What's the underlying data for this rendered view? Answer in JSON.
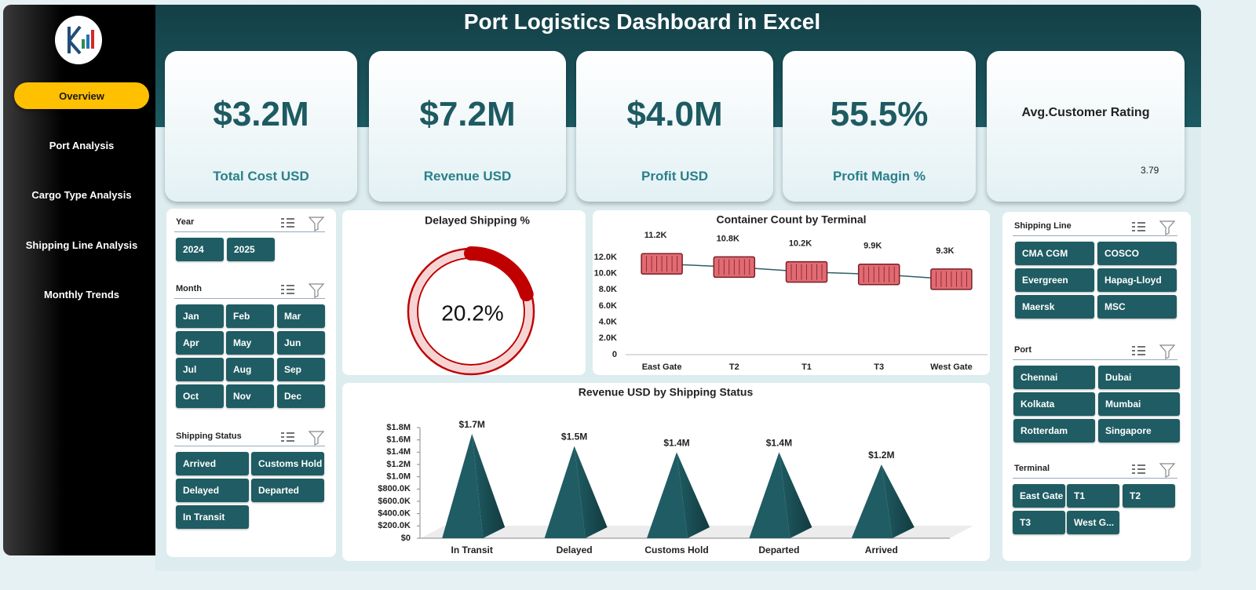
{
  "header": {
    "title": "Port Logistics Dashboard in Excel"
  },
  "nav": [
    "Overview",
    "Port Analysis",
    "Cargo Type Analysis",
    "Shipping Line  Analysis",
    "Monthly Trends"
  ],
  "kpis": [
    {
      "value": "$3.2M",
      "label": "Total Cost USD"
    },
    {
      "value": "$7.2M",
      "label": "Revenue USD"
    },
    {
      "value": "$4.0M",
      "label": "Profit USD"
    },
    {
      "value": "55.5%",
      "label": "Profit Magin %"
    }
  ],
  "rating": {
    "label": "Avg.Customer Rating",
    "value": 3.79
  },
  "left_slicers": [
    {
      "title": "Year",
      "items": [
        "2024",
        "2025"
      ]
    },
    {
      "title": "Month",
      "items": [
        "Jan",
        "Feb",
        "Mar",
        "Apr",
        "May",
        "Jun",
        "Jul",
        "Aug",
        "Sep",
        "Oct",
        "Nov",
        "Dec"
      ]
    },
    {
      "title": "Shipping Status",
      "items": [
        "Arrived",
        "Customs Hold",
        "Delayed",
        "Departed",
        "In Transit"
      ]
    }
  ],
  "right_slicers": [
    {
      "title": "Shipping Line",
      "items": [
        "CMA CGM",
        "COSCO",
        "Evergreen",
        "Hapag-Lloyd",
        "Maersk",
        "MSC"
      ]
    },
    {
      "title": "Port",
      "items": [
        "Chennai",
        "Dubai",
        "Kolkata",
        "Mumbai",
        "Rotterdam",
        "Singapore"
      ]
    },
    {
      "title": "Terminal",
      "items": [
        "East Gate",
        "T1",
        "T2",
        "T3",
        "West G..."
      ]
    }
  ],
  "chart_data": [
    {
      "type": "donut",
      "title": "Delayed  Shipping %",
      "values": [
        20.2
      ],
      "value_labels": [
        "20.2%"
      ],
      "color": "#c00000"
    },
    {
      "type": "line",
      "title": "Container Count by Terminal",
      "categories": [
        "East Gate",
        "T2",
        "T1",
        "T3",
        "West Gate"
      ],
      "values": [
        11200,
        10800,
        10200,
        9900,
        9300
      ],
      "value_labels": [
        "11.2K",
        "10.8K",
        "10.2K",
        "9.9K",
        "9.3K"
      ],
      "ylim": [
        0,
        12000
      ],
      "yticks": [
        0,
        {
          "value": 2000,
          "label": "2.0K"
        },
        {
          "value": 4000,
          "label": "4.0K"
        },
        {
          "value": 6000,
          "label": "6.0K"
        },
        {
          "value": 8000,
          "label": "8.0K"
        },
        {
          "value": 10000,
          "label": "10.0K"
        },
        {
          "value": 12000,
          "label": "12.0K"
        }
      ],
      "color": "#e26b73"
    },
    {
      "type": "pyramid",
      "title": "Revenue USD by Shipping Status",
      "categories": [
        "In Transit",
        "Delayed",
        "Customs Hold",
        "Departed",
        "Arrived"
      ],
      "values": [
        1700000,
        1500000,
        1400000,
        1400000,
        1200000
      ],
      "value_labels": [
        "$1.7M",
        "$1.5M",
        "$1.4M",
        "$1.4M",
        "$1.2M"
      ],
      "ylim": [
        0,
        1800000
      ],
      "yticks": [
        {
          "value": 0,
          "label": "$0"
        },
        {
          "value": 200000,
          "label": "$200.0K"
        },
        {
          "value": 400000,
          "label": "$400.0K"
        },
        {
          "value": 600000,
          "label": "$600.0K"
        },
        {
          "value": 800000,
          "label": "$800.0K"
        },
        {
          "value": 1000000,
          "label": "$1.0M"
        },
        {
          "value": 1200000,
          "label": "$1.2M"
        },
        {
          "value": 1400000,
          "label": "$1.4M"
        },
        {
          "value": 1600000,
          "label": "$1.6M"
        },
        {
          "value": 1800000,
          "label": "$1.8M"
        }
      ],
      "color": "#1f5c63"
    }
  ]
}
